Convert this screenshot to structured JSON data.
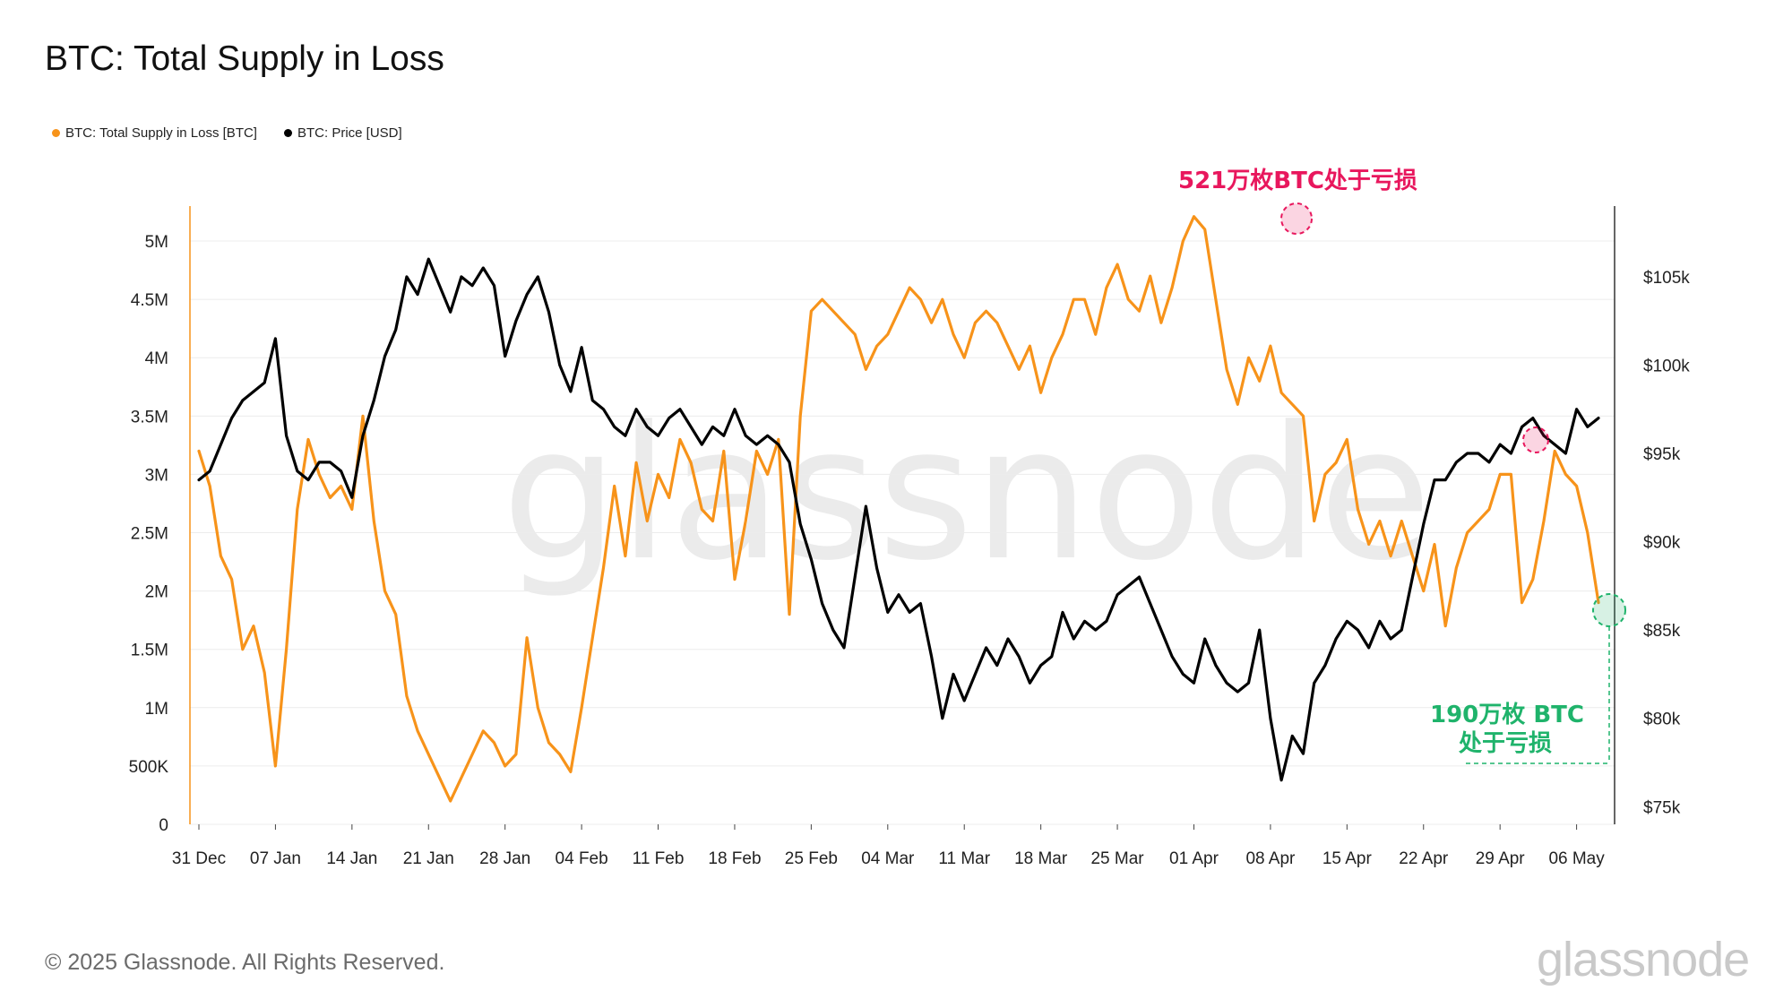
{
  "title": "BTC: Total Supply in Loss",
  "legend": [
    {
      "label": "BTC: Total Supply in Loss [BTC]",
      "color": "#f7931a"
    },
    {
      "label": "BTC: Price [USD]",
      "color": "#000000"
    }
  ],
  "footer": "© 2025 Glassnode. All Rights Reserved.",
  "brand": "glassnode",
  "watermark": "glassnode",
  "annotations": {
    "peak": "521万枚BTC处于亏损",
    "current_line1": "190万枚 BTC",
    "current_line2": "处于亏损"
  },
  "colors": {
    "supply": "#f7931a",
    "price": "#000000",
    "peak_marker": "#e8175d",
    "current_marker": "#1fb36b",
    "grid": "#ececec"
  },
  "chart_data": {
    "type": "line",
    "x_tick_labels": [
      "31 Dec",
      "07 Jan",
      "14 Jan",
      "21 Jan",
      "28 Jan",
      "04 Feb",
      "11 Feb",
      "18 Feb",
      "25 Feb",
      "04 Mar",
      "11 Mar",
      "18 Mar",
      "25 Mar",
      "01 Apr",
      "08 Apr",
      "15 Apr",
      "22 Apr",
      "29 Apr",
      "06 May"
    ],
    "y_left_ticks": [
      "0",
      "500K",
      "1M",
      "1.5M",
      "2M",
      "2.5M",
      "3M",
      "3.5M",
      "4M",
      "4.5M",
      "5M"
    ],
    "y_left_range": [
      0,
      5300000
    ],
    "y_right_ticks": [
      "$75k",
      "$80k",
      "$85k",
      "$90k",
      "$95k",
      "$100k",
      "$105k"
    ],
    "y_right_range": [
      74000,
      109000
    ],
    "grid": true,
    "legend_position": "top-left",
    "x_range_days": [
      0,
      128
    ],
    "series": [
      {
        "name": "BTC: Total Supply in Loss [BTC]",
        "axis": "left",
        "x": [
          0,
          1,
          2,
          3,
          4,
          5,
          6,
          7,
          8,
          9,
          10,
          11,
          12,
          13,
          14,
          15,
          16,
          17,
          18,
          19,
          20,
          21,
          22,
          23,
          24,
          25,
          26,
          27,
          28,
          29,
          30,
          31,
          32,
          33,
          34,
          35,
          36,
          37,
          38,
          39,
          40,
          41,
          42,
          43,
          44,
          45,
          46,
          47,
          48,
          49,
          50,
          51,
          52,
          53,
          54,
          55,
          56,
          57,
          58,
          59,
          60,
          61,
          62,
          63,
          64,
          65,
          66,
          67,
          68,
          69,
          70,
          71,
          72,
          73,
          74,
          75,
          76,
          77,
          78,
          79,
          80,
          81,
          82,
          83,
          84,
          85,
          86,
          87,
          88,
          89,
          90,
          91,
          92,
          93,
          94,
          95,
          96,
          97,
          98,
          99,
          100,
          101,
          102,
          103,
          104,
          105,
          106,
          107,
          108,
          109,
          110,
          111,
          112,
          113,
          114,
          115,
          116,
          117,
          118,
          119,
          120,
          121,
          122,
          123,
          124,
          125,
          126,
          127,
          128
        ],
        "values": [
          3200000,
          2900000,
          2300000,
          2100000,
          1500000,
          1700000,
          1300000,
          500000,
          1500000,
          2700000,
          3300000,
          3000000,
          2800000,
          2900000,
          2700000,
          3500000,
          2600000,
          2000000,
          1800000,
          1100000,
          800000,
          600000,
          400000,
          200000,
          400000,
          600000,
          800000,
          700000,
          500000,
          600000,
          1600000,
          1000000,
          700000,
          600000,
          450000,
          1000000,
          1600000,
          2200000,
          2900000,
          2300000,
          3100000,
          2600000,
          3000000,
          2800000,
          3300000,
          3100000,
          2700000,
          2600000,
          3200000,
          2100000,
          2600000,
          3200000,
          3000000,
          3300000,
          1800000,
          3500000,
          4400000,
          4500000,
          4400000,
          4300000,
          4200000,
          3900000,
          4100000,
          4200000,
          4400000,
          4600000,
          4500000,
          4300000,
          4500000,
          4200000,
          4000000,
          4300000,
          4400000,
          4300000,
          4100000,
          3900000,
          4100000,
          3700000,
          4000000,
          4200000,
          4500000,
          4500000,
          4200000,
          4600000,
          4800000,
          4500000,
          4400000,
          4700000,
          4300000,
          4600000,
          5000000,
          5210000,
          5100000,
          4500000,
          3900000,
          3600000,
          4000000,
          3800000,
          4100000,
          3700000,
          3600000,
          3500000,
          2600000,
          3000000,
          3100000,
          3300000,
          2700000,
          2400000,
          2600000,
          2300000,
          2600000,
          2300000,
          2000000,
          2400000,
          1700000,
          2200000,
          2500000,
          2600000,
          2700000,
          3000000,
          3000000,
          1900000,
          2100000,
          2600000,
          3200000,
          3000000,
          2900000,
          2500000,
          1900000
        ]
      },
      {
        "name": "BTC: Price [USD]",
        "axis": "right",
        "x": [
          0,
          1,
          2,
          3,
          4,
          5,
          6,
          7,
          8,
          9,
          10,
          11,
          12,
          13,
          14,
          15,
          16,
          17,
          18,
          19,
          20,
          21,
          22,
          23,
          24,
          25,
          26,
          27,
          28,
          29,
          30,
          31,
          32,
          33,
          34,
          35,
          36,
          37,
          38,
          39,
          40,
          41,
          42,
          43,
          44,
          45,
          46,
          47,
          48,
          49,
          50,
          51,
          52,
          53,
          54,
          55,
          56,
          57,
          58,
          59,
          60,
          61,
          62,
          63,
          64,
          65,
          66,
          67,
          68,
          69,
          70,
          71,
          72,
          73,
          74,
          75,
          76,
          77,
          78,
          79,
          80,
          81,
          82,
          83,
          84,
          85,
          86,
          87,
          88,
          89,
          90,
          91,
          92,
          93,
          94,
          95,
          96,
          97,
          98,
          99,
          100,
          101,
          102,
          103,
          104,
          105,
          106,
          107,
          108,
          109,
          110,
          111,
          112,
          113,
          114,
          115,
          116,
          117,
          118,
          119,
          120,
          121,
          122,
          123,
          124,
          125,
          126,
          127,
          128
        ],
        "values": [
          93500,
          94000,
          95500,
          97000,
          98000,
          98500,
          99000,
          101500,
          96000,
          94000,
          93500,
          94500,
          94500,
          94000,
          92500,
          96000,
          98000,
          100500,
          102000,
          105000,
          104000,
          106000,
          104500,
          103000,
          105000,
          104500,
          105500,
          104500,
          100500,
          102500,
          104000,
          105000,
          103000,
          100000,
          98500,
          101000,
          98000,
          97500,
          96500,
          96000,
          97500,
          96500,
          96000,
          97000,
          97500,
          96500,
          95500,
          96500,
          96000,
          97500,
          96000,
          95500,
          96000,
          95500,
          94500,
          91000,
          89000,
          86500,
          85000,
          84000,
          88000,
          92000,
          88500,
          86000,
          87000,
          86000,
          86500,
          83500,
          80000,
          82500,
          81000,
          82500,
          84000,
          83000,
          84500,
          83500,
          82000,
          83000,
          83500,
          86000,
          84500,
          85500,
          85000,
          85500,
          87000,
          87500,
          88000,
          86500,
          85000,
          83500,
          82500,
          82000,
          84500,
          83000,
          82000,
          81500,
          82000,
          85000,
          80000,
          76500,
          79000,
          78000,
          82000,
          83000,
          84500,
          85500,
          85000,
          84000,
          85500,
          84500,
          85000,
          88000,
          91000,
          93500,
          93500,
          94500,
          95000,
          95000,
          94500,
          95500,
          95000,
          96500,
          97000,
          96000,
          95500,
          95000,
          97500,
          96500,
          97000
        ]
      }
    ]
  }
}
